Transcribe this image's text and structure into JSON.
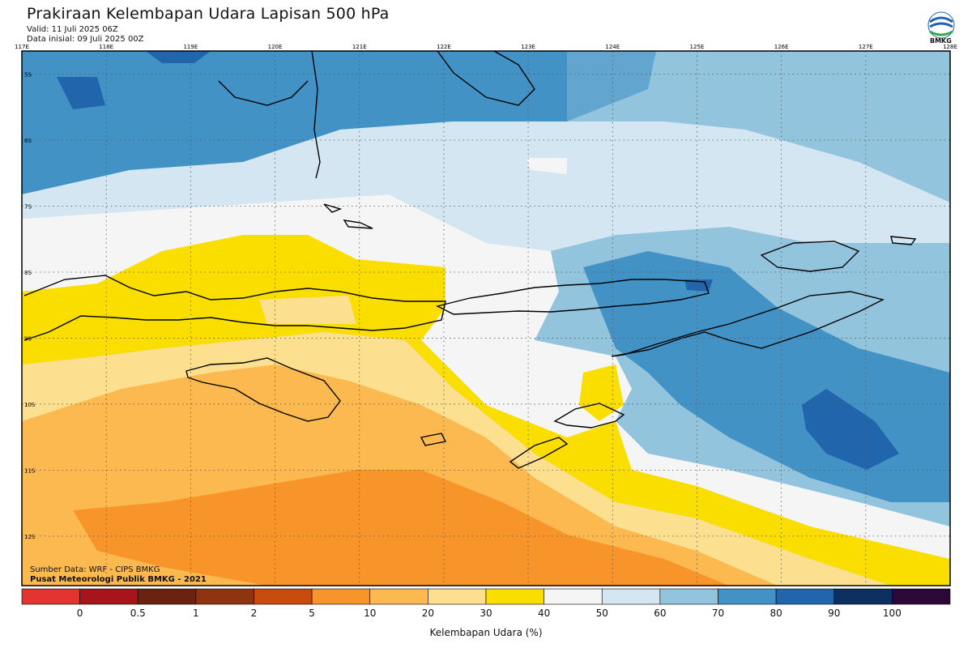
{
  "header": {
    "title": "Prakiraan Kelembapan Udara Lapisan 500 hPa",
    "valid": "Valid: 11 Juli 2025 06Z",
    "init": "Data inisial: 09 Juli 2025 00Z",
    "logo_text": "BMKG"
  },
  "map": {
    "lon_labels": [
      "117E",
      "118E",
      "119E",
      "120E",
      "121E",
      "122E",
      "123E",
      "124E",
      "125E",
      "126E",
      "127E",
      "128E"
    ],
    "lat_labels": [
      "5S",
      "6S",
      "7S",
      "8S",
      "9S",
      "10S",
      "11S",
      "12S"
    ],
    "lon_range": [
      117,
      128
    ],
    "lat_range": [
      -4.65,
      -12.75
    ],
    "grid": true
  },
  "source": {
    "line1": "Sumber Data: WRF - CIPS BMKG",
    "line2": "Pusat Meteorologi Publik BMKG - 2021"
  },
  "legend": {
    "title": "Kelembapan Udara (%)",
    "tick_labels": [
      "0",
      "0.5",
      "1",
      "2",
      "5",
      "10",
      "20",
      "30",
      "40",
      "50",
      "60",
      "70",
      "80",
      "90",
      "100"
    ],
    "colors": [
      "#e3342f",
      "#a8141b",
      "#6b2210",
      "#8f3411",
      "#c84a0c",
      "#f7952a",
      "#fbb94f",
      "#fde08f",
      "#fade00",
      "#f5f5f5",
      "#d4e6f1",
      "#92c4de",
      "#4292c6",
      "#2166ac",
      "#0b2f5e",
      "#2b0838"
    ]
  }
}
